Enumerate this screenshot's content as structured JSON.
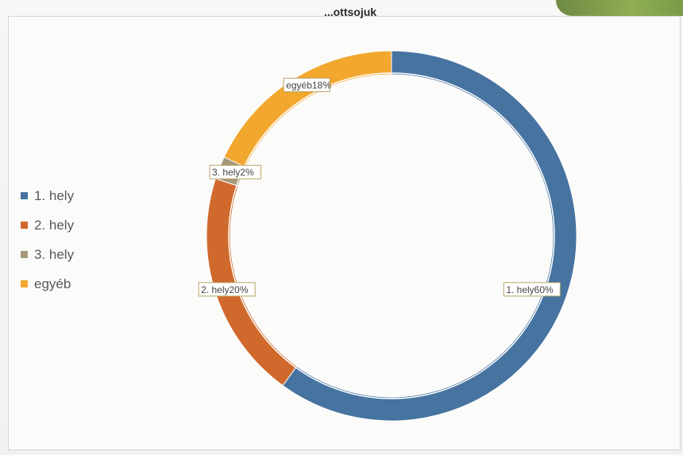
{
  "chart_data": {
    "type": "donut",
    "title": "",
    "series": [
      {
        "categories": [
          "1. hely",
          "2. hely",
          "3. hely",
          "egyéb"
        ],
        "values": [
          60,
          20,
          2,
          18
        ],
        "labels": [
          "1. hely60%",
          "2. hely20%",
          "3. hely2%",
          "egyéb18%"
        ]
      }
    ],
    "colors": [
      "#4673a0",
      "#d0692c",
      "#a5997a",
      "#f2a72e"
    ],
    "legend_position": "left"
  },
  "legend": {
    "items": [
      {
        "label": "1. hely",
        "color": "#4673a0"
      },
      {
        "label": "2. hely",
        "color": "#d0692c"
      },
      {
        "label": "3. hely",
        "color": "#a5997a"
      },
      {
        "label": "egyéb",
        "color": "#f2a72e"
      }
    ]
  },
  "header": {
    "title": "...ottsojuk"
  }
}
